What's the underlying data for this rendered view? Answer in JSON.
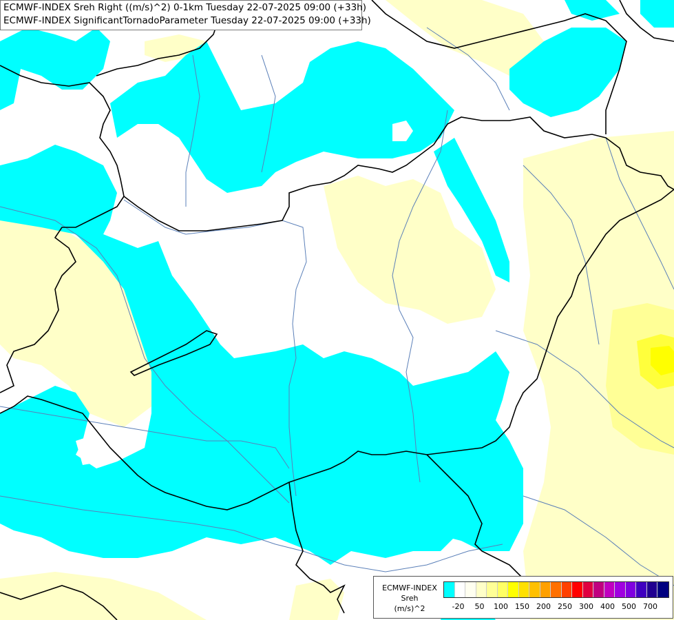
{
  "header": {
    "line1": "ECMWF-INDEX Sreh Right ((m/s)^2) 0-1km Tuesday 22-07-2025 09:00 (+33h)",
    "line2": "ECMWF-INDEX SignificantTornadoParameter Tuesday 22-07-2025 09:00 (+33h)"
  },
  "legend": {
    "title_lines": [
      "ECMWF-INDEX",
      "Sreh",
      "(m/s)^2"
    ],
    "colors": [
      "#00ffff",
      "#ffffff",
      "#fffff0",
      "#ffffc8",
      "#ffff96",
      "#ffff64",
      "#ffff00",
      "#ffe000",
      "#ffc000",
      "#ffa000",
      "#ff7000",
      "#ff4000",
      "#ff0000",
      "#e00040",
      "#c00080",
      "#c000c0",
      "#a000e0",
      "#8000e0",
      "#4000c0",
      "#200090",
      "#000080"
    ],
    "tick_labels": [
      "-20",
      "50",
      "100",
      "150",
      "200",
      "250",
      "300",
      "400",
      "500",
      "700"
    ]
  },
  "colors": {
    "cyan": "#00ffff",
    "pale_yellow": "#ffffc8",
    "yellow_mid": "#ffff96",
    "yellow_strong": "#ffff3c",
    "border_line": "#000000",
    "river_line": "#5a7fb8"
  }
}
